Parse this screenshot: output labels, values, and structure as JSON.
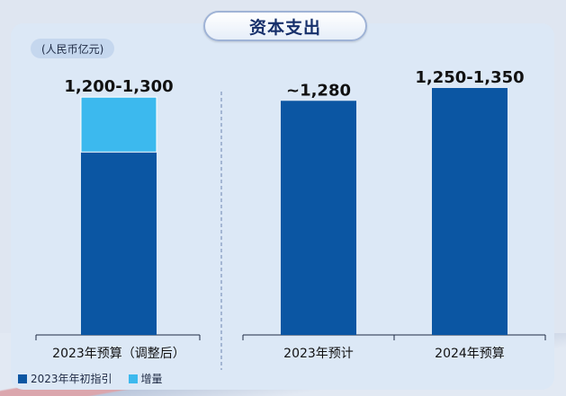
{
  "header": {
    "title": "资本支出"
  },
  "unit_label": "(人民币亿元)",
  "colors": {
    "base": "#0b56a3",
    "increment": "#3cb9ee",
    "text": "#111111"
  },
  "chart_data": {
    "type": "bar",
    "title": "资本支出",
    "ylabel": "人民币亿元",
    "ylim": [
      0,
      1350
    ],
    "categories": [
      "2023年预算（调整后）",
      "2023年预计",
      "2024年预算"
    ],
    "series": [
      {
        "name": "2023年年初指引",
        "values": [
          1000,
          1280,
          1350
        ]
      },
      {
        "name": "增量",
        "values": [
          300,
          0,
          0
        ]
      }
    ],
    "data_labels": [
      "1,200-1,300",
      "~1,280",
      "1,250-1,350"
    ],
    "legend": {
      "position": "bottom-left",
      "entries": [
        "2023年年初指引",
        "增量"
      ]
    }
  }
}
